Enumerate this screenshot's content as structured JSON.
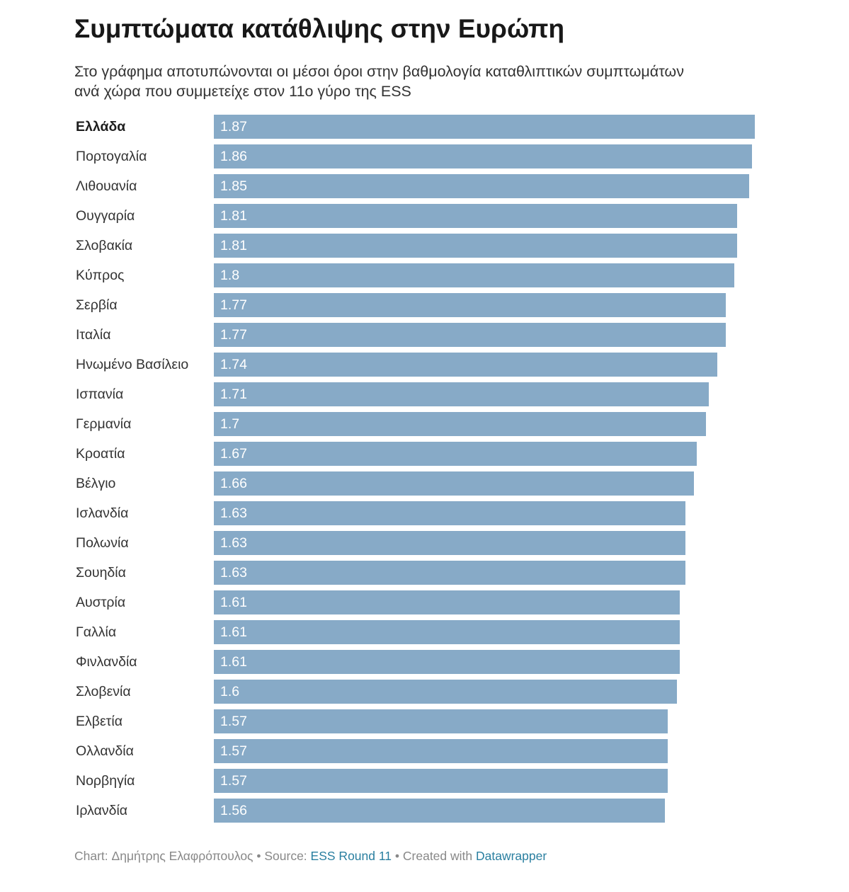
{
  "header": {
    "title": "Συμπτώματα κατάθλιψης στην Ευρώπη",
    "subtitle": "Στο γράφημα αποτυπώνονται οι μέσοι όροι στην βαθμολογία καταθλιπτικών συμπτωμάτων ανά χώρα που συμμετείχε στον 11ο γύρο της ESS"
  },
  "footer": {
    "chart_prefix": "Chart: Δημήτρης Ελαφρόπουλος",
    "sep1": " • ",
    "source_prefix": "Source: ",
    "source_link": "ESS Round 11",
    "sep2": " • ",
    "created_prefix": "Created with ",
    "created_link": "Datawrapper"
  },
  "colors": {
    "bar": "#87aac7",
    "value_text": "#ffffff",
    "link": "#2a7fa0"
  },
  "chart_data": {
    "type": "bar",
    "orientation": "horizontal",
    "title": "Συμπτώματα κατάθλιψης στην Ευρώπη",
    "categories": [
      "Ελλάδα",
      "Πορτογαλία",
      "Λιθουανία",
      "Ουγγαρία",
      "Σλοβακία",
      "Κύπρος",
      "Σερβία",
      "Ιταλία",
      "Ηνωμένο Βασίλειο",
      "Ισπανία",
      "Γερμανία",
      "Κροατία",
      "Βέλγιο",
      "Ισλανδία",
      "Πολωνία",
      "Σουηδία",
      "Αυστρία",
      "Γαλλία",
      "Φινλανδία",
      "Σλοβενία",
      "Ελβετία",
      "Ολλανδία",
      "Νορβηγία",
      "Ιρλανδία"
    ],
    "values": [
      1.87,
      1.86,
      1.85,
      1.81,
      1.81,
      1.8,
      1.77,
      1.77,
      1.74,
      1.71,
      1.7,
      1.67,
      1.66,
      1.63,
      1.63,
      1.63,
      1.61,
      1.61,
      1.61,
      1.6,
      1.57,
      1.57,
      1.57,
      1.56
    ],
    "value_labels": [
      "1.87",
      "1.86",
      "1.85",
      "1.81",
      "1.81",
      "1.8",
      "1.77",
      "1.77",
      "1.74",
      "1.71",
      "1.7",
      "1.67",
      "1.66",
      "1.63",
      "1.63",
      "1.63",
      "1.61",
      "1.61",
      "1.61",
      "1.6",
      "1.57",
      "1.57",
      "1.57",
      "1.56"
    ],
    "highlighted_category": "Ελλάδα",
    "xlim": [
      0,
      1.87
    ],
    "grid": false
  }
}
